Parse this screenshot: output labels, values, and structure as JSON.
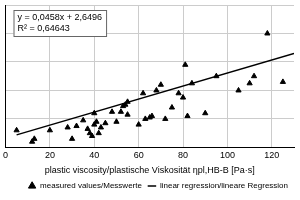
{
  "chart_data": {
    "type": "scatter",
    "x_label": "plastic viscosity/plastische Viskosität ηpl,HB-B [Pa·s]",
    "annotations": [
      "y = 0,0458x + 2,6496",
      "R² = 0,64643"
    ],
    "series": [
      {
        "name": "measured values/Messwerte",
        "type": "scatter",
        "marker": "triangle",
        "color": "#000000",
        "x": [
          5,
          12,
          13,
          20,
          28,
          30,
          32,
          35,
          37,
          38,
          39,
          40,
          40,
          41,
          42,
          43,
          45,
          48,
          50,
          52,
          53,
          54,
          55,
          55,
          60,
          62,
          63,
          65,
          66,
          68,
          70,
          72,
          75,
          78,
          80,
          81,
          82,
          84,
          90,
          95,
          105,
          110,
          112,
          118,
          125
        ],
        "values": [
          3.2,
          2.4,
          2.6,
          3.2,
          3.4,
          2.6,
          3.5,
          3.9,
          3.3,
          3.0,
          2.8,
          3.6,
          4.4,
          3.8,
          3.0,
          3.4,
          3.7,
          4.5,
          3.8,
          4.5,
          4.9,
          5.0,
          5.2,
          4.3,
          3.6,
          5.8,
          4.0,
          4.1,
          4.2,
          6.0,
          6.4,
          4.0,
          4.8,
          5.8,
          5.5,
          7.8,
          4.2,
          6.5,
          4.4,
          7.0,
          6.0,
          6.5,
          7.0,
          10.0,
          6.6
        ]
      },
      {
        "name": "linear regression/lineare Regression",
        "type": "line",
        "line_style": "solid",
        "color": "#000000",
        "x": [
          5,
          130
        ],
        "values": [
          2.88,
          8.6
        ]
      }
    ],
    "xlim": [
      0,
      130
    ],
    "xticks": [
      0,
      20,
      40,
      60,
      80,
      100,
      120
    ],
    "ylim": [
      2,
      12
    ],
    "yticks": [
      2,
      4,
      6,
      8,
      10,
      12
    ],
    "grid": true,
    "legend": "bottom",
    "tick_labels": "x"
  }
}
